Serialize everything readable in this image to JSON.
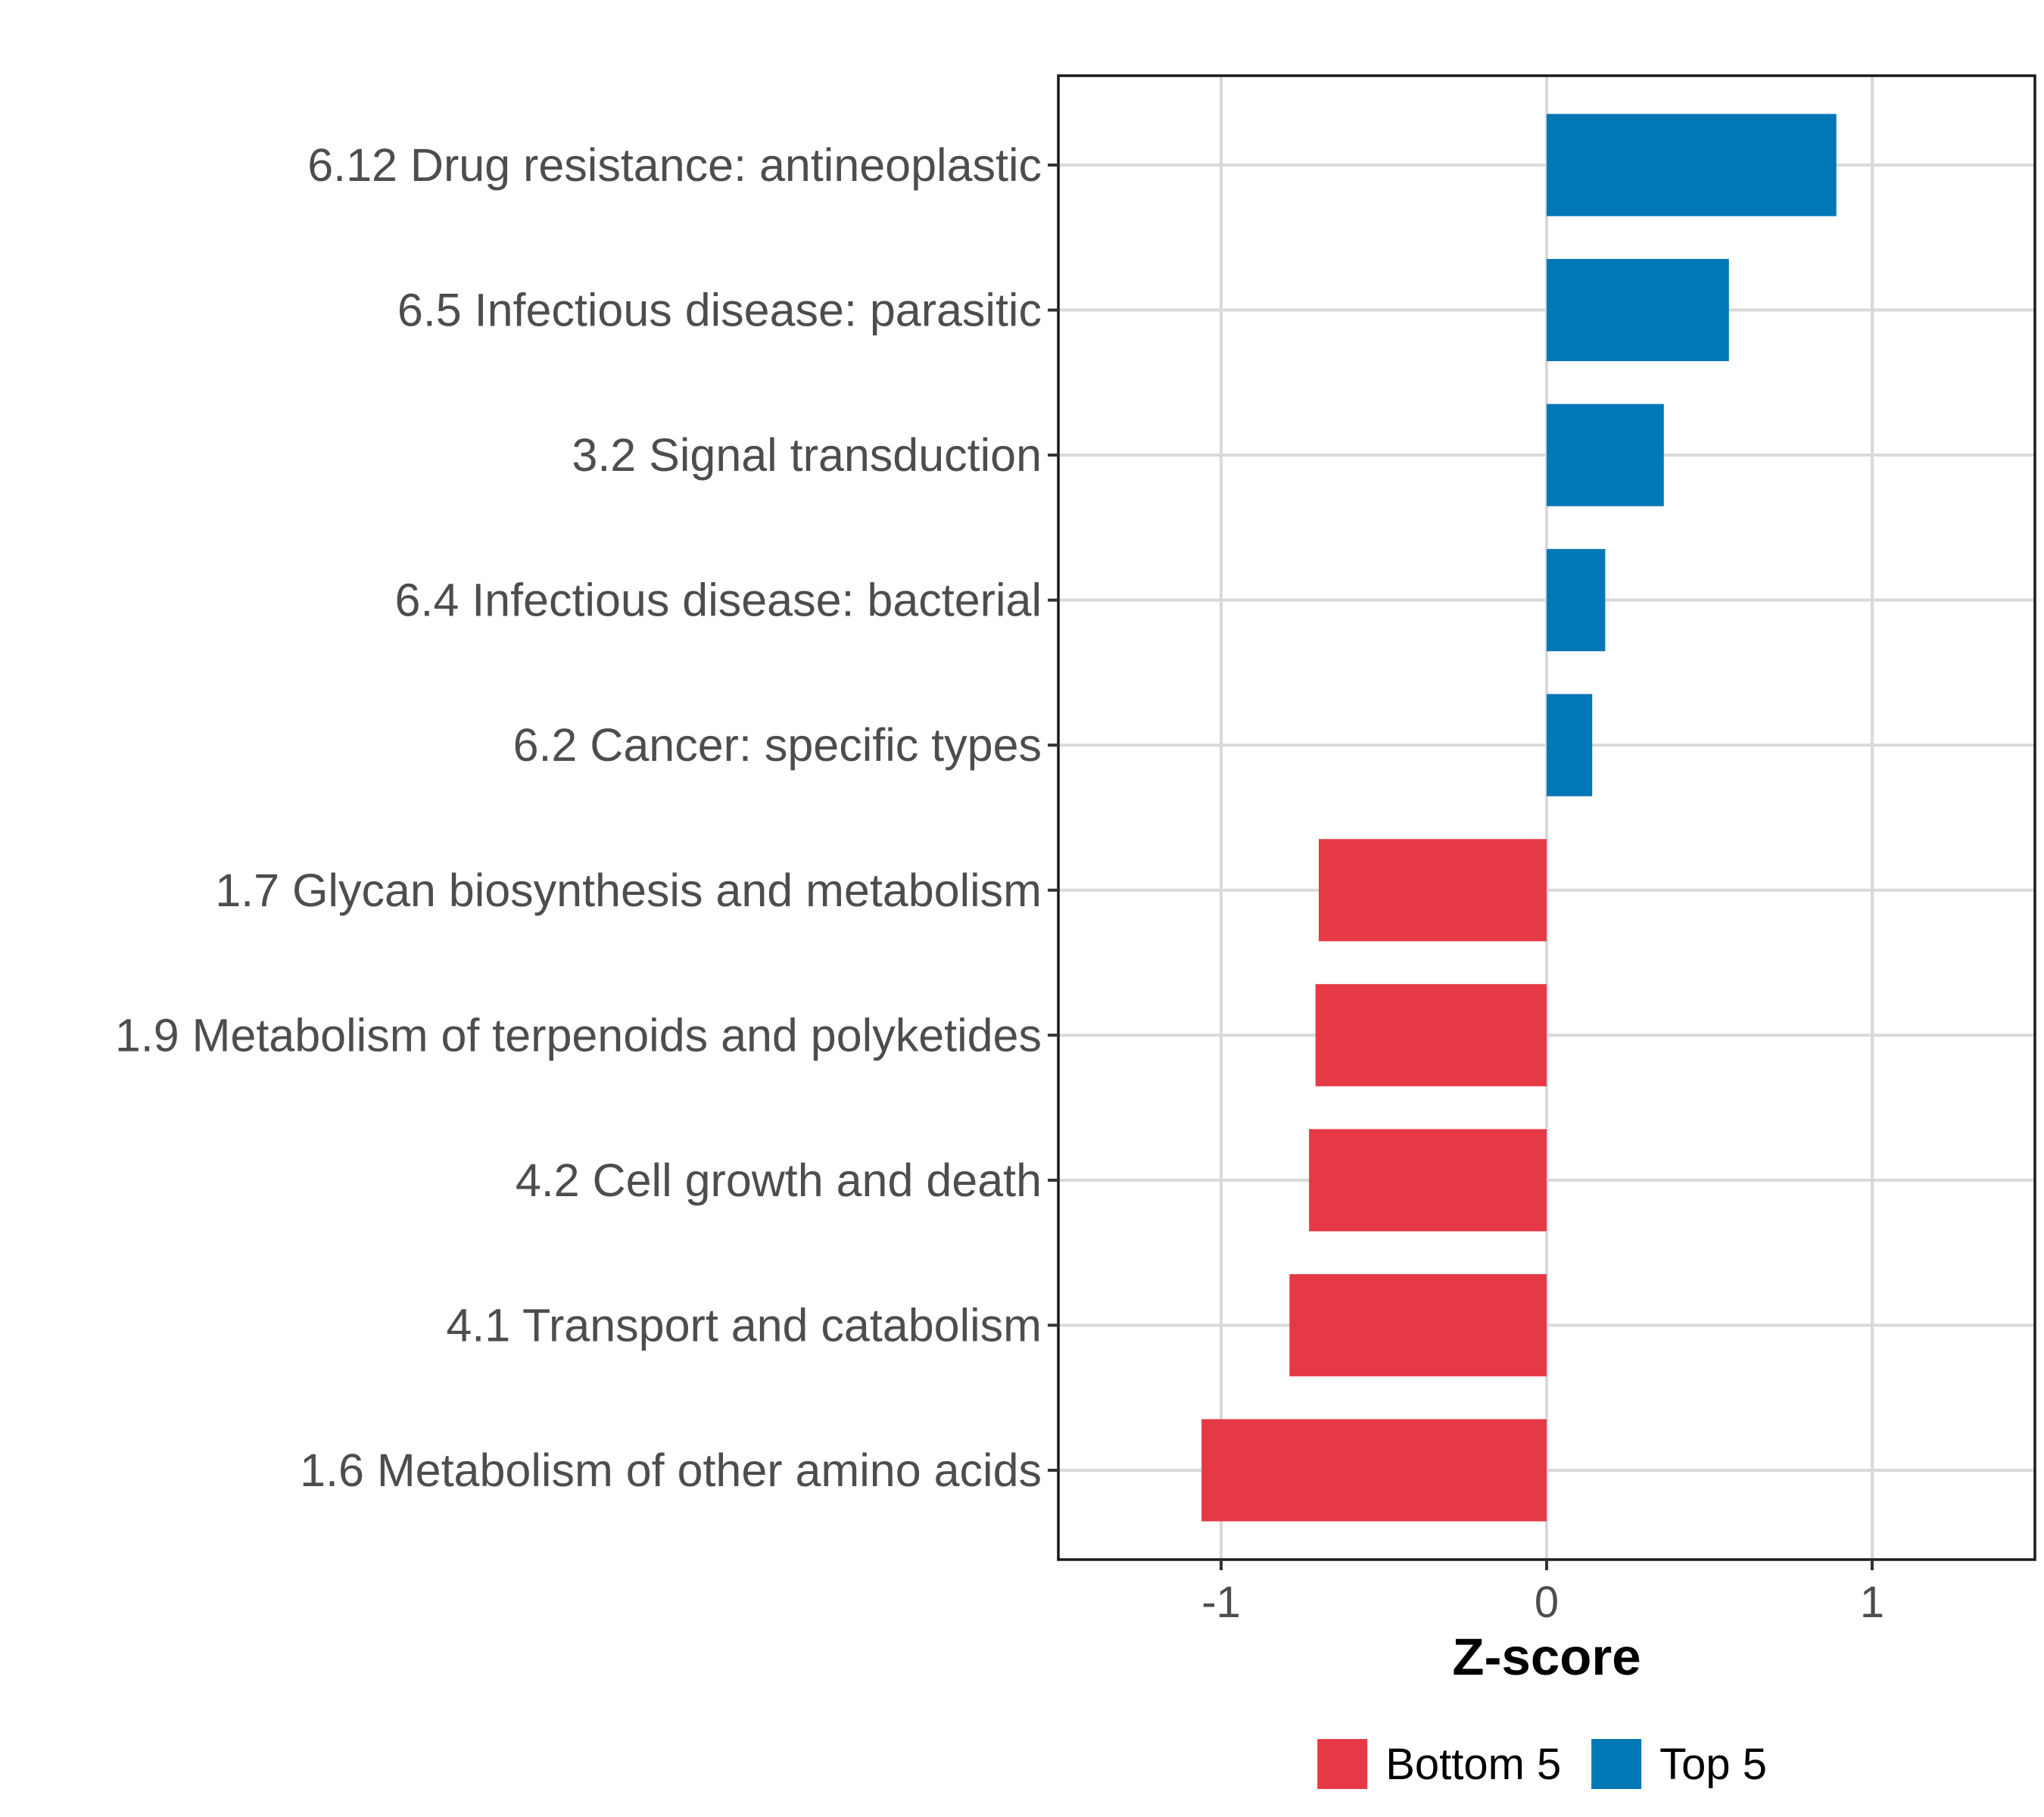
{
  "chart_data": {
    "type": "bar",
    "orientation": "horizontal",
    "categories": [
      "6.12 Drug resistance: antineoplastic",
      "6.5 Infectious disease: parasitic",
      "3.2 Signal transduction",
      "6.4 Infectious disease: bacterial",
      "6.2 Cancer: specific types",
      "1.7 Glycan biosynthesis and metabolism",
      "1.9 Metabolism of terpenoids and polyketides",
      "4.2 Cell growth and death",
      "4.1 Transport and catabolism",
      "1.6 Metabolism of other amino acids"
    ],
    "values": [
      0.89,
      0.56,
      0.36,
      0.18,
      0.14,
      -0.7,
      -0.71,
      -0.73,
      -0.79,
      -1.06
    ],
    "groups": [
      "Top 5",
      "Top 5",
      "Top 5",
      "Top 5",
      "Top 5",
      "Bottom 5",
      "Bottom 5",
      "Bottom 5",
      "Bottom 5",
      "Bottom 5"
    ],
    "xlabel": "Z-score",
    "ylabel": "",
    "xlim": [
      -1.5,
      1.5
    ],
    "xticks": [
      -1,
      0,
      1
    ],
    "xtick_labels": [
      "-1",
      "0",
      "1"
    ],
    "grid": true,
    "legend": {
      "position": "bottom",
      "entries": [
        {
          "label": "Bottom 5",
          "color": "#e63946"
        },
        {
          "label": "Top 5",
          "color": "#0077b6"
        }
      ]
    },
    "colors": {
      "Bottom 5": "#e63946",
      "Top 5": "#0077b6"
    }
  }
}
